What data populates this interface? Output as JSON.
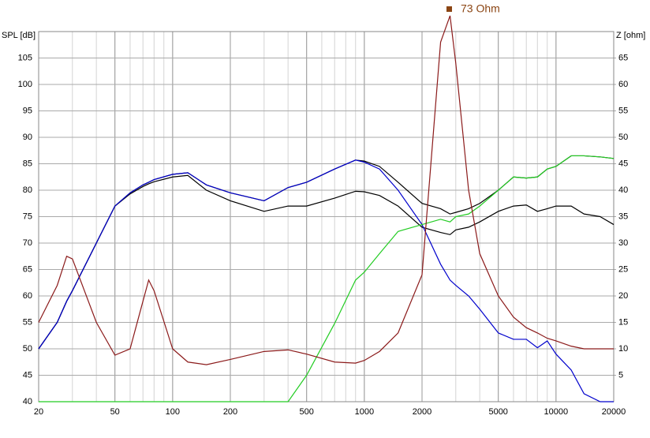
{
  "chart_data": {
    "type": "line",
    "ylabel": "SPL [dB]",
    "y2label": "Z [ohm]",
    "annotation": "73 Ohm",
    "x": [
      20,
      25,
      28,
      30,
      40,
      50,
      60,
      70,
      75,
      80,
      100,
      120,
      150,
      200,
      300,
      400,
      500,
      700,
      900,
      1000,
      1200,
      1500,
      2000,
      2500,
      2800,
      3000,
      3500,
      4000,
      5000,
      6000,
      7000,
      8000,
      9000,
      10000,
      12000,
      14000,
      17000,
      20000
    ],
    "xscale": "log",
    "xlim": [
      20,
      20000
    ],
    "xticks": [
      20,
      50,
      100,
      200,
      500,
      1000,
      2000,
      5000,
      10000,
      20000
    ],
    "ylim": [
      40,
      110
    ],
    "yticks": [
      40,
      45,
      50,
      55,
      60,
      65,
      70,
      75,
      80,
      85,
      90,
      95,
      100,
      105
    ],
    "y2lim": [
      0,
      70
    ],
    "y2ticks": [
      5,
      10,
      15,
      20,
      25,
      30,
      35,
      40,
      45,
      50,
      55,
      60,
      65
    ],
    "grid": true,
    "series": [
      {
        "color": "#000000",
        "values": [
          50,
          55,
          59,
          61,
          70,
          77,
          79.5,
          81,
          81.5,
          82,
          83,
          83.3,
          81,
          79.5,
          78,
          80.5,
          81.5,
          84,
          85.7,
          85.5,
          84.5,
          81.5,
          77.5,
          76.5,
          75.5,
          75.8,
          76.5,
          77.5,
          80,
          82.5,
          82.3,
          82.5,
          84,
          84.5,
          86.5,
          86.5,
          86.3,
          86
        ]
      },
      {
        "color": "#000000",
        "values": [
          50,
          55,
          59,
          61,
          70,
          77,
          79.3,
          80.7,
          81.2,
          81.6,
          82.5,
          82.8,
          80,
          78,
          76,
          77,
          77,
          78.5,
          79.8,
          79.7,
          79,
          77,
          73,
          72,
          71.6,
          72.5,
          73,
          74,
          76,
          77,
          77.2,
          76,
          76.5,
          77,
          77,
          75.5,
          75,
          73.5
        ]
      },
      {
        "color": "#0000cc",
        "values": [
          50,
          55,
          59,
          61,
          70,
          77,
          79.5,
          81,
          81.5,
          82,
          83,
          83.3,
          81,
          79.5,
          78,
          80.5,
          81.5,
          84,
          85.7,
          85.3,
          84,
          80,
          73.5,
          66,
          63,
          62,
          60,
          57.5,
          53,
          51.8,
          51.8,
          50.2,
          51.5,
          49,
          46,
          41.5,
          40,
          40
        ]
      },
      {
        "color": "#22cc22",
        "values": [
          40,
          40,
          40,
          40,
          40,
          40,
          40,
          40,
          40,
          40,
          40,
          40,
          40,
          40,
          40,
          40,
          45,
          54.8,
          63,
          64.5,
          68,
          72.2,
          73.5,
          74.5,
          74,
          75,
          75.5,
          77,
          80,
          82.5,
          82.3,
          82.5,
          84,
          84.5,
          86.5,
          86.5,
          86.3,
          86
        ]
      },
      {
        "color": "#8b1a1a",
        "axis": "y2",
        "values": [
          15,
          22,
          27.5,
          27,
          15,
          8.8,
          10,
          19,
          23,
          21,
          10,
          7.5,
          7,
          8,
          9.5,
          9.8,
          9,
          7.5,
          7.3,
          7.8,
          9.5,
          13,
          24,
          68,
          73,
          64,
          40,
          28,
          20,
          16,
          14,
          13,
          12,
          11.5,
          10.5,
          10,
          10,
          10
        ]
      }
    ],
    "annotation_color": "#8b4513"
  }
}
